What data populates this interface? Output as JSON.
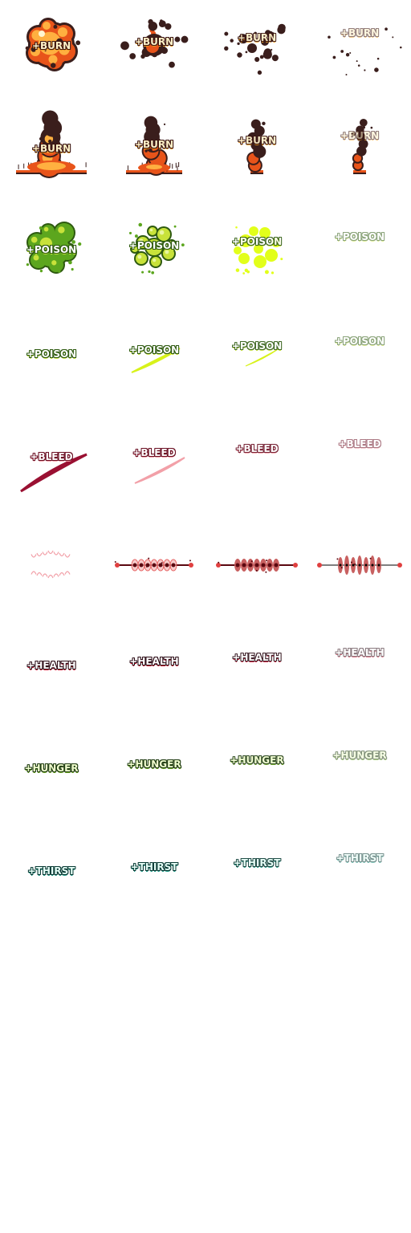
{
  "sprite_sheet": {
    "rows": [
      {
        "name": "burn-explosion",
        "label": "+BURN",
        "fx": "explosion",
        "colors": {
          "text": "#fff2c8",
          "stroke": "#3a1410",
          "shade": "#e89a20",
          "main": "#e8541a",
          "hot": "#ffb040",
          "smoke": "#3a1e1c"
        },
        "frames": 4
      },
      {
        "name": "burn-fire",
        "label": "+BURN",
        "fx": "fire",
        "colors": {
          "text": "#fff2c8",
          "stroke": "#3a1410",
          "shade": "#e89a20",
          "main": "#e8541a",
          "hot": "#ffb040",
          "smoke": "#3a1e1c"
        },
        "frames": 4
      },
      {
        "name": "poison-cloud",
        "label": "+POISON",
        "fx": "bubbles",
        "colors": {
          "text": "#ffffff",
          "stroke": "#2e5a10",
          "shade": "#c8e23a",
          "main": "#5ca61e",
          "hot": "#e2ff1a",
          "smoke": "#2e5a10"
        },
        "frames": 4
      },
      {
        "name": "poison-slash",
        "label": "+POISON",
        "fx": "slash",
        "colors": {
          "text": "#ffffff",
          "stroke": "#2e5a10",
          "shade": "#c8e23a",
          "main": "#d8f21a",
          "hot": "#e2ff1a",
          "smoke": "#2e5a10"
        },
        "frames": 4
      },
      {
        "name": "bleed-slash",
        "label": "+BLEED",
        "fx": "slash",
        "colors": {
          "text": "#ffffff",
          "stroke": "#6a0e22",
          "shade": "#f2a0a8",
          "main": "#9a1032",
          "hot": "#f2a0a8",
          "smoke": "#6a0e22"
        },
        "frames": 4
      },
      {
        "name": "bleed-bite",
        "label": "",
        "fx": "bite",
        "colors": {
          "text": "#ffffff",
          "stroke": "#6a0e22",
          "shade": "#f2a0a8",
          "main": "#e04040",
          "hot": "#c86060",
          "smoke": "#5a0810"
        },
        "frames": 4
      },
      {
        "name": "health",
        "label": "+HEALTH",
        "fx": "text",
        "colors": {
          "text": "#ffffff",
          "stroke": "#2a0a14",
          "shade": "#c8102e",
          "main": "#c8102e",
          "hot": "#c8102e",
          "smoke": "#2a0a14"
        },
        "frames": 4
      },
      {
        "name": "hunger",
        "label": "+HUNGER",
        "fx": "text",
        "colors": {
          "text": "#f2ffd0",
          "stroke": "#1e3a10",
          "shade": "#6aa81e",
          "main": "#6aa81e",
          "hot": "#6aa81e",
          "smoke": "#1e3a10"
        },
        "frames": 4
      },
      {
        "name": "thirst",
        "label": "+THIRST",
        "fx": "text",
        "colors": {
          "text": "#e6fff8",
          "stroke": "#0a3a34",
          "shade": "#1a9a86",
          "main": "#1a9a86",
          "hot": "#1a9a86",
          "smoke": "#0a3a34"
        },
        "frames": 4
      }
    ]
  }
}
